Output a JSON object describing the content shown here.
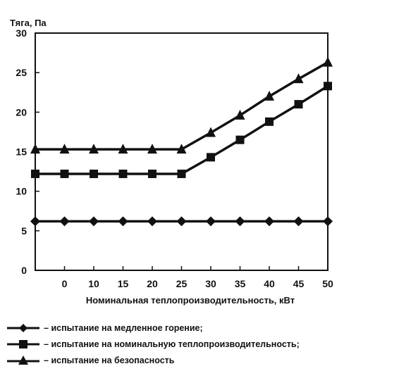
{
  "chart_data": {
    "type": "line",
    "ylabel": "Тяга, Па",
    "xlabel": "Номинальная теплопроизводительность, кВт",
    "x": [
      null,
      0,
      10,
      15,
      20,
      25,
      30,
      35,
      40,
      45,
      50
    ],
    "x_ticks": [
      "0",
      "10",
      "15",
      "20",
      "25",
      "30",
      "35",
      "40",
      "45",
      "50"
    ],
    "y_ticks": [
      "0",
      "5",
      "10",
      "15",
      "20",
      "25",
      "30"
    ],
    "ylim": [
      0,
      30
    ],
    "grid": false,
    "legend_position": "bottom",
    "series": [
      {
        "name": "испытание на медленное горение;",
        "marker": "diamond",
        "color": "#111111",
        "values": [
          6.2,
          6.2,
          6.2,
          6.2,
          6.2,
          6.2,
          6.2,
          6.2,
          6.2,
          6.2,
          6.2
        ]
      },
      {
        "name": "испытание на номинальную теплопроизводительность;",
        "marker": "square",
        "color": "#111111",
        "values": [
          12.2,
          12.2,
          12.2,
          12.2,
          12.2,
          12.2,
          14.3,
          16.5,
          18.8,
          21.0,
          23.3
        ]
      },
      {
        "name": "испытание на безопасность",
        "marker": "triangle",
        "color": "#111111",
        "values": [
          15.3,
          15.3,
          15.3,
          15.3,
          15.3,
          15.3,
          17.4,
          19.6,
          22.0,
          24.2,
          26.3
        ]
      }
    ]
  }
}
